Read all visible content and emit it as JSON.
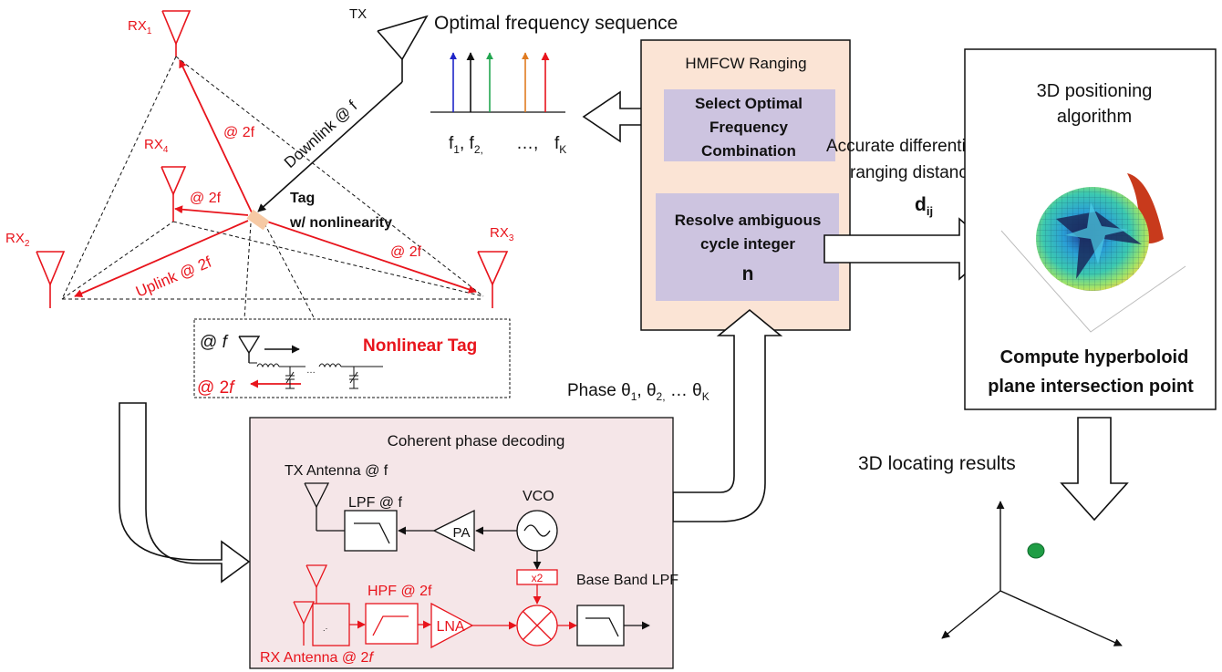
{
  "colors": {
    "red": "#e8141c",
    "black": "#111111",
    "tag_fill": "#f6c9a4",
    "hmfcw_fill": "#fbe4d5",
    "purple_fill": "#cdc4e0",
    "coherent_fill": "#f5e6e8",
    "blue_line": "#1f25c8",
    "green_line": "#22a650",
    "orange_line": "#e07b20",
    "marker_green": "#1f9d45"
  },
  "topology": {
    "rx1_prefix": "RX",
    "rx1_sub": "1",
    "rx2_prefix": "RX",
    "rx2_sub": "2",
    "rx3_prefix": "RX",
    "rx3_sub": "3",
    "rx4_prefix": "RX",
    "rx4_sub": "4",
    "tx_label": "TX",
    "downlink_label": "Downlink @ f",
    "uplink_label": "Uplink @ 2f",
    "at2f_1": "@ 2f",
    "at2f_2": "@ 2f",
    "at2f_3": "@ 2f",
    "tag_line1": "Tag",
    "tag_line2": "w/ nonlinearity"
  },
  "nonlinear_tag": {
    "in_at": "@ ",
    "in_f": "f",
    "out_at": "@ 2",
    "out_f": "f",
    "title": "Nonlinear Tag"
  },
  "freq_seq": {
    "title": "Optimal frequency sequence",
    "f1": "f",
    "f1_sub": "1",
    "sep1": ", f",
    "f2_sub": "2,",
    "dots": "…,",
    "fk": "f",
    "fk_sub": "K"
  },
  "hmfcw": {
    "title": "HMFCW Ranging",
    "select_line1": "Select Optimal",
    "select_line2": "Frequency",
    "select_line3": "Combination",
    "resolve_line1": "Resolve ambiguous",
    "resolve_line2": "cycle integer",
    "resolve_var": "n"
  },
  "phase": {
    "prefix": "Phase θ",
    "sub1": "1",
    "mid1": ", θ",
    "sub2": "2,",
    "mid2": " … θ",
    "subK": "K"
  },
  "differential": {
    "line1": "Accurate differential",
    "line2": "ranging distance",
    "var": "d",
    "var_sub": "ij"
  },
  "positioning": {
    "title_line1": "3D positioning",
    "title_line2": "algorithm",
    "caption_line1": "Compute hyperboloid",
    "caption_line2": "plane intersection point"
  },
  "results": {
    "label": "3D locating results"
  },
  "coherent": {
    "title": "Coherent phase decoding",
    "tx_antenna": "TX Antenna @ f",
    "lpf": "LPF @ f",
    "vco": "VCO",
    "pa": "PA",
    "x2": "x2",
    "baseband": "Base Band LPF",
    "hpf": "HPF @ 2f",
    "lna": "LNA",
    "rx_antenna_prefix": "RX Antenna @ 2",
    "rx_antenna_f": "f"
  }
}
